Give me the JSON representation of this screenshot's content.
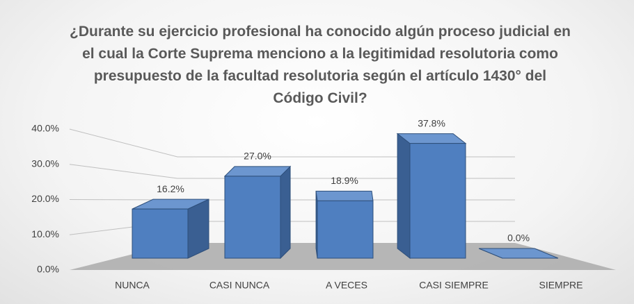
{
  "chart_data": {
    "type": "bar3d",
    "title": "¿Durante su ejercicio profesional ha conocido algún proceso judicial en el cual la Corte Suprema menciono a la legitimidad resolutoria como presupuesto de la facultad resolutoria según el artículo 1430° del Código Civil?",
    "categories": [
      "NUNCA",
      "CASI NUNCA",
      "A VECES",
      "CASI SIEMPRE",
      "SIEMPRE"
    ],
    "values": [
      16.2,
      27.0,
      18.9,
      37.8,
      0.0
    ],
    "value_labels": [
      "16.2%",
      "27.0%",
      "18.9%",
      "37.8%",
      "0.0%"
    ],
    "color": "#4f7fc0",
    "ylim": [
      0,
      40
    ],
    "yticks": [
      {
        "value": 0,
        "label": "0.0%"
      },
      {
        "value": 10,
        "label": "10.0%"
      },
      {
        "value": 20,
        "label": "20.0%"
      },
      {
        "value": 30,
        "label": "30.0%"
      },
      {
        "value": 40,
        "label": "40.0%"
      }
    ],
    "grid": true
  }
}
